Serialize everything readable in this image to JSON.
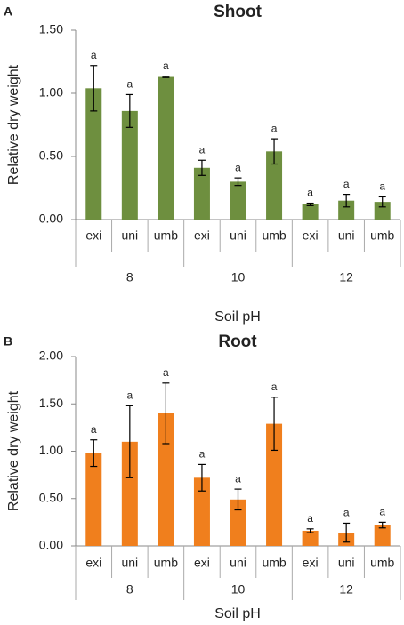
{
  "chart_data": [
    {
      "type": "bar",
      "panel": "A",
      "title": "Shoot",
      "y_label": "Relative dry weight",
      "x_label": "Soil pH",
      "groups": [
        {
          "name": "8",
          "categories": [
            "exi",
            "uni",
            "umb"
          ]
        },
        {
          "name": "10",
          "categories": [
            "exi",
            "uni",
            "umb"
          ]
        },
        {
          "name": "12",
          "categories": [
            "exi",
            "uni",
            "umb"
          ]
        }
      ],
      "values": [
        1.04,
        0.86,
        1.13,
        0.41,
        0.3,
        0.54,
        0.12,
        0.15,
        0.14
      ],
      "errors": [
        0.18,
        0.13,
        0.005,
        0.06,
        0.03,
        0.1,
        0.01,
        0.05,
        0.04
      ],
      "letters": [
        "a",
        "a",
        "a",
        "a",
        "a",
        "a",
        "a",
        "a",
        "a"
      ],
      "color": "#6e8f3f",
      "ylim": [
        0,
        1.5
      ],
      "yticks": [
        {
          "value": 0,
          "label": "0.00"
        },
        {
          "value": 0.5,
          "label": "0.50"
        },
        {
          "value": 1,
          "label": "1.00"
        },
        {
          "value": 1.5,
          "label": "1.50"
        }
      ]
    },
    {
      "type": "bar",
      "panel": "B",
      "title": "Root",
      "y_label": "Relative dry weight",
      "x_label": "Soil pH",
      "groups": [
        {
          "name": "8",
          "categories": [
            "exi",
            "uni",
            "umb"
          ]
        },
        {
          "name": "10",
          "categories": [
            "exi",
            "uni",
            "umb"
          ]
        },
        {
          "name": "12",
          "categories": [
            "exi",
            "uni",
            "umb"
          ]
        }
      ],
      "values": [
        0.98,
        1.1,
        1.4,
        0.72,
        0.49,
        1.29,
        0.16,
        0.14,
        0.22
      ],
      "errors": [
        0.14,
        0.38,
        0.32,
        0.14,
        0.11,
        0.28,
        0.02,
        0.1,
        0.03
      ],
      "letters": [
        "a",
        "a",
        "a",
        "a",
        "a",
        "a",
        "a",
        "a",
        "a"
      ],
      "color": "#f07f1d",
      "ylim": [
        0,
        2
      ],
      "yticks": [
        {
          "value": 0,
          "label": "0.00"
        },
        {
          "value": 0.5,
          "label": "0.50"
        },
        {
          "value": 1,
          "label": "1.00"
        },
        {
          "value": 1.5,
          "label": "1.50"
        },
        {
          "value": 2,
          "label": "2.00"
        }
      ]
    }
  ]
}
